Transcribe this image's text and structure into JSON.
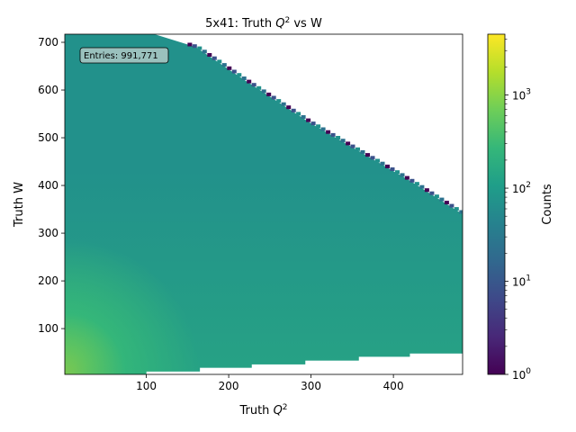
{
  "chart_data": {
    "type": "heatmap",
    "title": "5x41: Truth Q² vs W",
    "title_parts": {
      "prefix": "5x41: Truth ",
      "var": "Q",
      "sup": "2",
      "suffix": " vs W"
    },
    "xlabel": "Truth Q²",
    "xlabel_parts": {
      "prefix": "Truth ",
      "var": "Q",
      "sup": "2"
    },
    "ylabel": "Truth W",
    "xlim": [
      1,
      484
    ],
    "ylim": [
      4,
      717
    ],
    "x_ticks": [
      100,
      200,
      300,
      400
    ],
    "y_ticks": [
      100,
      200,
      300,
      400,
      500,
      600,
      700
    ],
    "annotation": "Entries: 991,771",
    "colorbar": {
      "label": "Counts",
      "scale": "log",
      "range": [
        1,
        4500
      ],
      "major_ticks": [
        {
          "value": 1,
          "base": "10",
          "exp": "0"
        },
        {
          "value": 10,
          "base": "10",
          "exp": "1"
        },
        {
          "value": 100,
          "base": "10",
          "exp": "2"
        },
        {
          "value": 1000,
          "base": "10",
          "exp": "3"
        }
      ],
      "colormap": [
        "#440154",
        "#482878",
        "#3e4989",
        "#31688e",
        "#26828e",
        "#1f9e89",
        "#35b779",
        "#6ece58",
        "#b5de2b",
        "#fde725"
      ]
    },
    "grid": false,
    "kinematic_boundary": {
      "description": "upper edge of filled region, W in data units at given Q2",
      "q2": [
        1,
        110,
        160,
        220,
        300,
        360,
        420,
        484
      ],
      "w_max": [
        717,
        717,
        690,
        620,
        530,
        470,
        410,
        340
      ]
    },
    "lower_boundary": {
      "description": "lower edge of filled region, steps in W at given Q2",
      "q2": [
        1,
        100,
        100,
        165,
        165,
        228,
        228,
        293,
        293,
        358,
        358,
        420,
        420,
        484
      ],
      "w_min": [
        4,
        4,
        10,
        10,
        18,
        18,
        25,
        25,
        33,
        33,
        41,
        41,
        48,
        48
      ]
    }
  }
}
